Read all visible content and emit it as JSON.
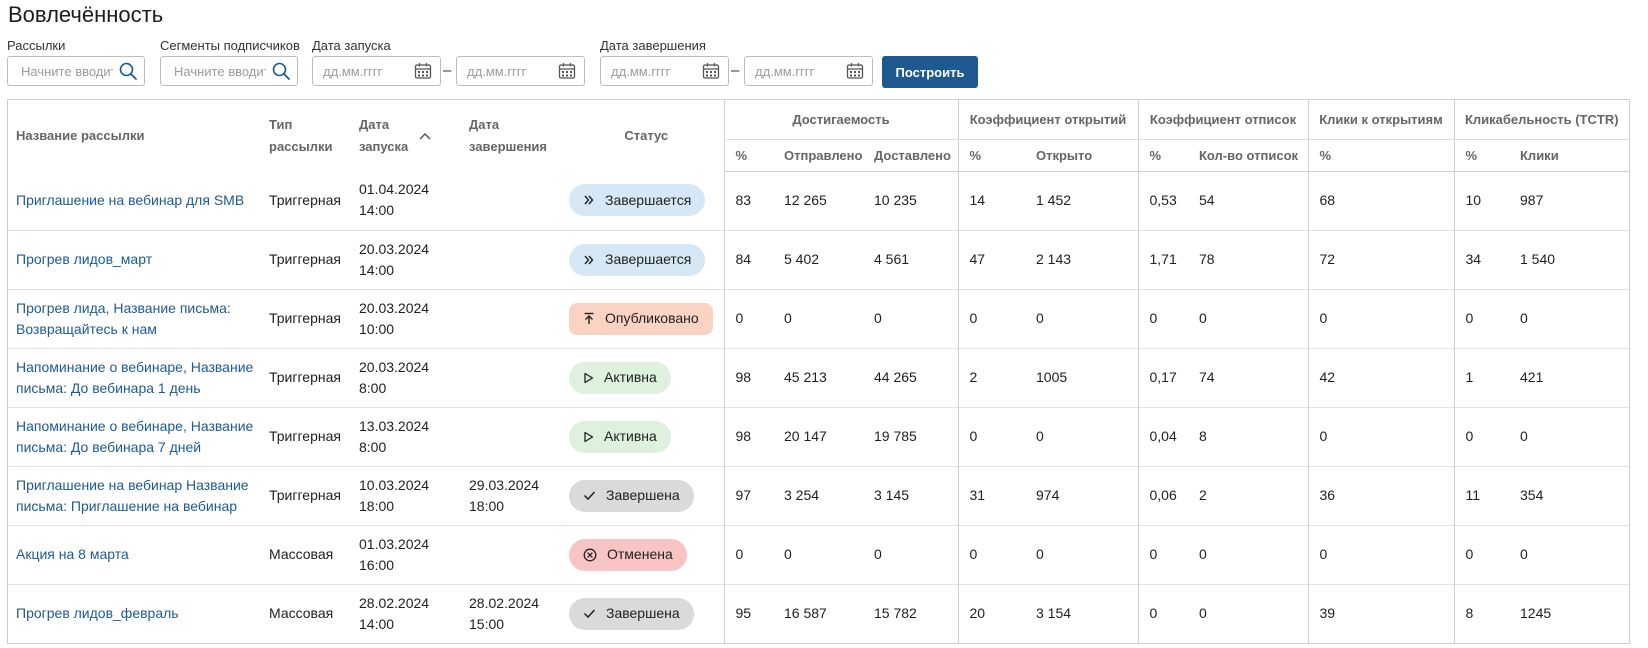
{
  "page": {
    "title": "Вовлечённость"
  },
  "filters": {
    "mailings": {
      "label": "Рассылки",
      "placeholder": "Начните вводить"
    },
    "segments": {
      "label": "Сегменты подписчиков",
      "placeholder": "Начните вводить"
    },
    "start_date": {
      "label": "Дата запуска",
      "from_placeholder": "дд.мм.гггг",
      "to_placeholder": "дд.мм.гггг"
    },
    "end_date": {
      "label": "Дата завершения",
      "from_placeholder": "дд.мм.гггг",
      "to_placeholder": "дд.мм.гггг"
    },
    "range_separator": "–",
    "build_label": "Построить"
  },
  "table": {
    "headers": {
      "name": "Название рассылки",
      "type_l1": "Тип",
      "type_l2": "рассылки",
      "start_l1": "Дата",
      "start_l2": "запуска",
      "end_l1": "Дата",
      "end_l2": "завершения",
      "status": "Статус",
      "reach": "Достигаемость",
      "open_rate": "Коэффициент открытий",
      "unsub_rate": "Коэффициент отписок",
      "clicks_to_opens": "Клики к открытиям",
      "tctr": "Кликабельность (TCTR)"
    },
    "subheaders": {
      "reach_pct": "%",
      "sent": "Отправлено",
      "delivered": "Доставлено",
      "open_pct": "%",
      "opened": "Открыто",
      "unsub_pct": "%",
      "unsub_count": "Кол-во отписок",
      "cto_pct": "%",
      "tctr_pct": "%",
      "clicks": "Клики"
    },
    "rows": [
      {
        "name_l1": "Приглашение на вебинар для SMB",
        "name_l2": "",
        "type": "Триггерная",
        "start_d": "01.04.2024",
        "start_t": "14:00",
        "end_d": "",
        "end_t": "",
        "status": "Завершается",
        "status_kind": "ending",
        "status_icon": "double-chevron-right-icon",
        "reach_pct": "83",
        "sent": "12 265",
        "delivered": "10 235",
        "open_pct": "14",
        "opened": "1 452",
        "unsub_pct": "0,53",
        "unsub_count": "54",
        "cto_pct": "68",
        "tctr_pct": "10",
        "clicks": "987"
      },
      {
        "name_l1": "Прогрев лидов_март",
        "name_l2": "",
        "type": "Триггерная",
        "start_d": "20.03.2024",
        "start_t": "14:00",
        "end_d": "",
        "end_t": "",
        "status": "Завершается",
        "status_kind": "ending",
        "status_icon": "double-chevron-right-icon",
        "reach_pct": "84",
        "sent": "5 402",
        "delivered": "4 561",
        "open_pct": "47",
        "opened": "2 143",
        "unsub_pct": "1,71",
        "unsub_count": "78",
        "cto_pct": "72",
        "tctr_pct": "34",
        "clicks": "1 540"
      },
      {
        "name_l1": "Прогрев лида, Название письма:",
        "name_l2": "Возвращайтесь к нам",
        "type": "Триггерная",
        "start_d": "20.03.2024",
        "start_t": "10:00",
        "end_d": "",
        "end_t": "",
        "status": "Опубликовано",
        "status_kind": "published",
        "status_icon": "upload-arrow-icon",
        "reach_pct": "0",
        "sent": "0",
        "delivered": "0",
        "open_pct": "0",
        "opened": "0",
        "unsub_pct": "0",
        "unsub_count": "0",
        "cto_pct": "0",
        "tctr_pct": "0",
        "clicks": "0"
      },
      {
        "name_l1": "Напоминание о вебинаре, Название",
        "name_l2": "письма: До вебинара 1 день",
        "type": "Триггерная",
        "start_d": "20.03.2024",
        "start_t": "8:00",
        "end_d": "",
        "end_t": "",
        "status": "Активна",
        "status_kind": "active",
        "status_icon": "play-icon",
        "reach_pct": "98",
        "sent": "45 213",
        "delivered": "44 265",
        "open_pct": "2",
        "opened": "1005",
        "unsub_pct": "0,17",
        "unsub_count": "74",
        "cto_pct": "42",
        "tctr_pct": "1",
        "clicks": "421"
      },
      {
        "name_l1": "Напоминание о вебинаре, Название",
        "name_l2": "письма: До вебинара 7 дней",
        "type": "Триггерная",
        "start_d": "13.03.2024",
        "start_t": "8:00",
        "end_d": "",
        "end_t": "",
        "status": "Активна",
        "status_kind": "active",
        "status_icon": "play-icon",
        "reach_pct": "98",
        "sent": "20 147",
        "delivered": "19 785",
        "open_pct": "0",
        "opened": "0",
        "unsub_pct": "0,04",
        "unsub_count": "8",
        "cto_pct": "0",
        "tctr_pct": "0",
        "clicks": "0"
      },
      {
        "name_l1": "Приглашение на вебинар Название",
        "name_l2": "письма: Приглашение на вебинар",
        "type": "Триггерная",
        "start_d": "10.03.2024",
        "start_t": "18:00",
        "end_d": "29.03.2024",
        "end_t": "18:00",
        "status": "Завершена",
        "status_kind": "done",
        "status_icon": "check-icon",
        "reach_pct": "97",
        "sent": "3 254",
        "delivered": "3 145",
        "open_pct": "31",
        "opened": "974",
        "unsub_pct": "0,06",
        "unsub_count": "2",
        "cto_pct": "36",
        "tctr_pct": "11",
        "clicks": "354"
      },
      {
        "name_l1": "Акция на 8 марта",
        "name_l2": "",
        "type": "Массовая",
        "start_d": "01.03.2024",
        "start_t": "16:00",
        "end_d": "",
        "end_t": "",
        "status": "Отменена",
        "status_kind": "cancel",
        "status_icon": "cancel-circle-icon",
        "reach_pct": "0",
        "sent": "0",
        "delivered": "0",
        "open_pct": "0",
        "opened": "0",
        "unsub_pct": "0",
        "unsub_count": "0",
        "cto_pct": "0",
        "tctr_pct": "0",
        "clicks": "0"
      },
      {
        "name_l1": "Прогрев лидов_февраль",
        "name_l2": "",
        "type": "Массовая",
        "start_d": "28.02.2024",
        "start_t": "14:00",
        "end_d": "28.02.2024",
        "end_t": "15:00",
        "status": "Завершена",
        "status_kind": "done",
        "status_icon": "check-icon",
        "reach_pct": "95",
        "sent": "16 587",
        "delivered": "15 782",
        "open_pct": "20",
        "opened": "3 154",
        "unsub_pct": "0",
        "unsub_count": "0",
        "cto_pct": "39",
        "tctr_pct": "8",
        "clicks": "1245"
      }
    ]
  }
}
